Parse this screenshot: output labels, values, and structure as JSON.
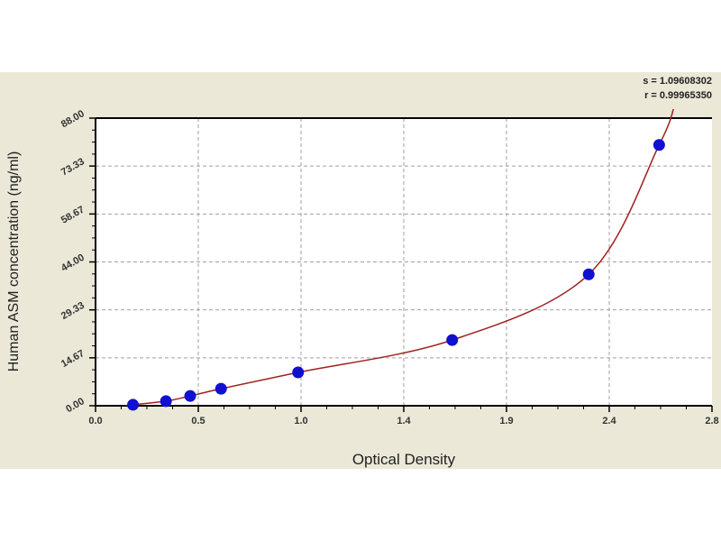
{
  "chart_data": {
    "type": "scatter",
    "xlabel": "Optical Density",
    "ylabel": "Human ASM concentration (ng/ml)",
    "xlim": [
      0,
      2.8
    ],
    "ylim": [
      0,
      88
    ],
    "x_tick_labels": [
      "0.0",
      "0.5",
      "1.0",
      "1.4",
      "1.9",
      "2.4",
      "2.8"
    ],
    "y_tick_labels": [
      "0.00",
      "14.67",
      "29.33",
      "44.00",
      "58.67",
      "73.33",
      "88.00"
    ],
    "grid": true,
    "stats": [
      "s = 1.09608302",
      "r = 0.99965350"
    ],
    "points": {
      "x": [
        0.17,
        0.32,
        0.43,
        0.57,
        0.92,
        1.62,
        2.24,
        2.56
      ],
      "y": [
        0.3,
        1.4,
        3.0,
        5.2,
        10.2,
        20.1,
        40.2,
        79.8
      ]
    },
    "colors": {
      "points": "#1010d0",
      "curve": "#a02020",
      "panel": "#ebe8d8",
      "grid": "#a0a0a0"
    }
  }
}
